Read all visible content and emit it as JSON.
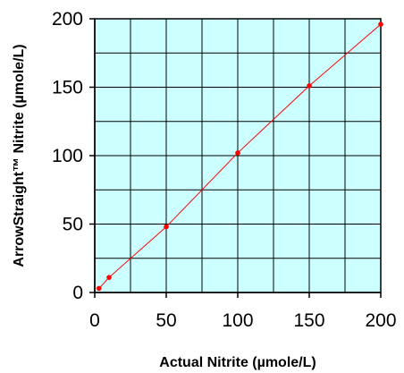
{
  "chart_data": {
    "type": "scatter",
    "title": "",
    "xlabel": "Actual Nitrite (µmole/L)",
    "ylabel": "ArrowStraight™ Nitrite (µmole/L)",
    "xlim": [
      0,
      200
    ],
    "ylim": [
      0,
      200
    ],
    "x_ticks": [
      "0",
      "50",
      "100",
      "150",
      "200"
    ],
    "y_ticks": [
      "0",
      "50",
      "100",
      "150",
      "200"
    ],
    "grid": true,
    "x_grid_step": 25,
    "y_grid_step": 25,
    "background_color": "#ccffff",
    "series": [
      {
        "color": "#ff0000",
        "line": true,
        "markers": true,
        "x": [
          3,
          10,
          50,
          100,
          150,
          200
        ],
        "y": [
          3,
          11,
          48,
          102,
          151,
          196
        ]
      }
    ]
  }
}
